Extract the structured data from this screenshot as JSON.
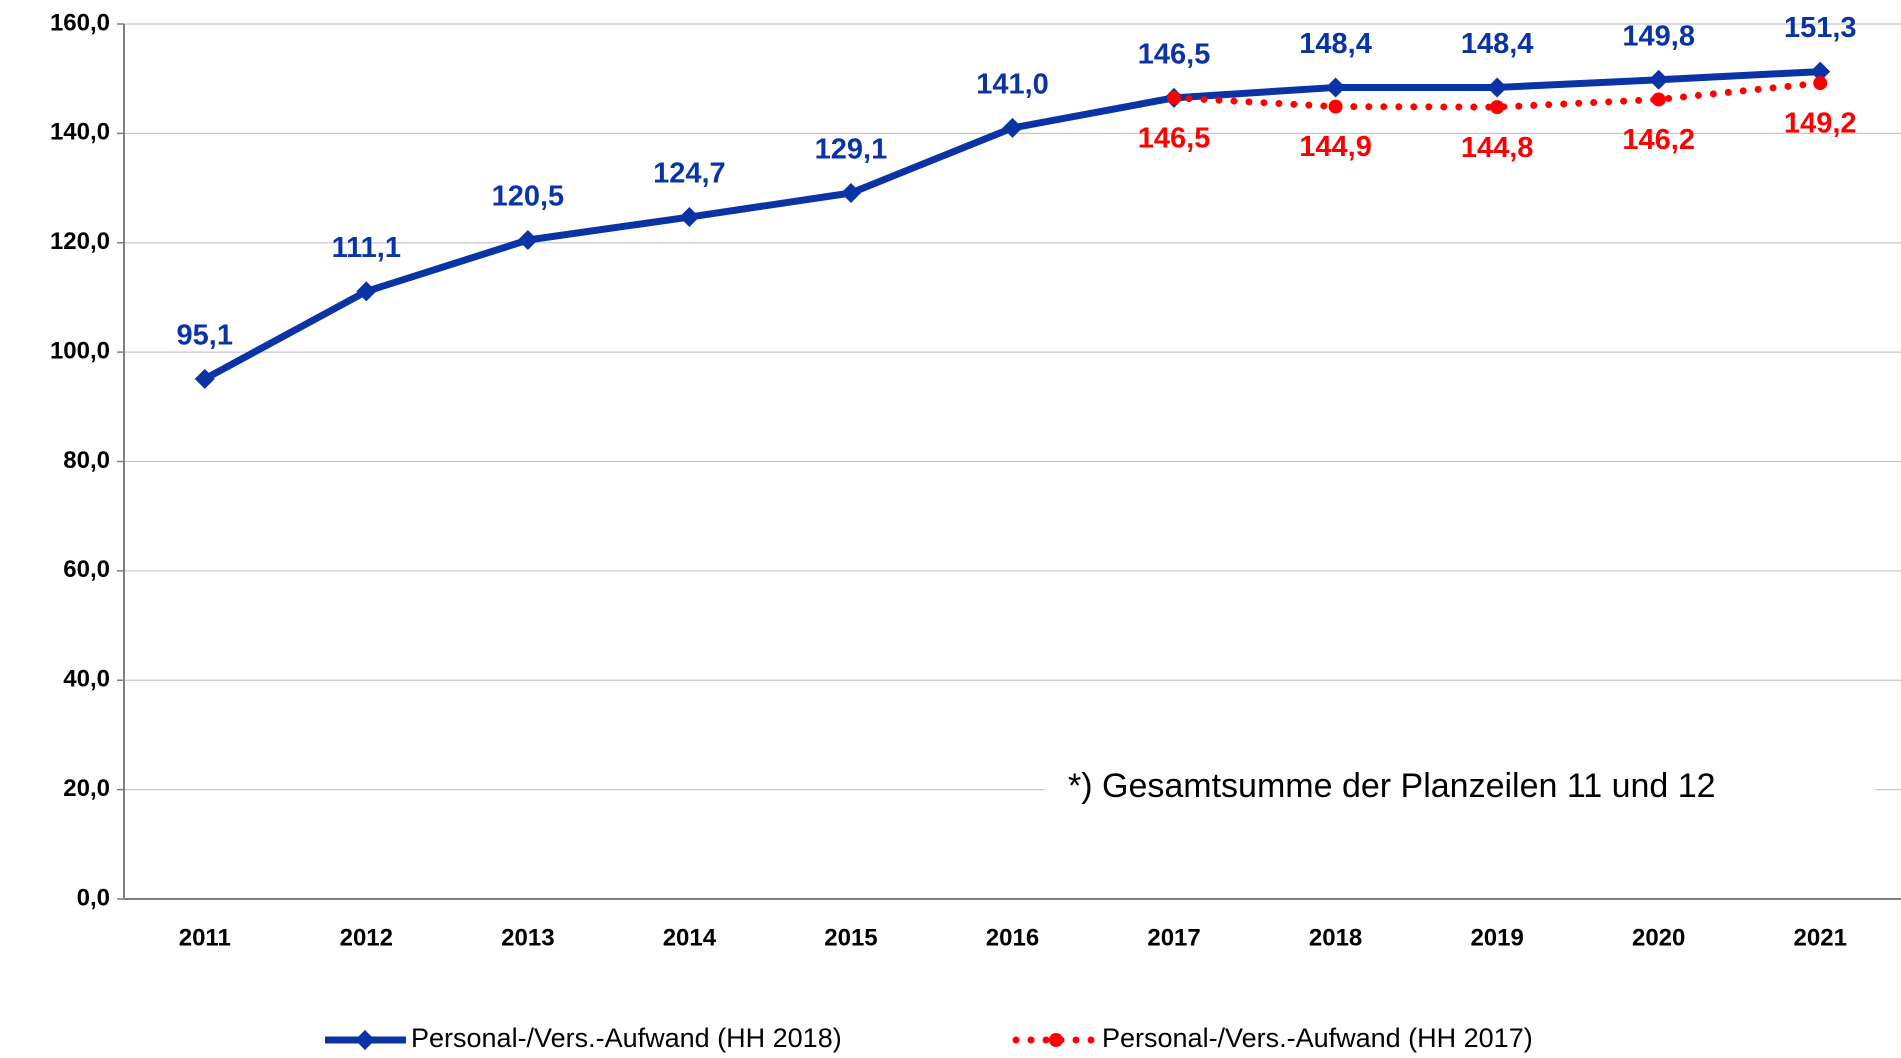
{
  "chart_data": {
    "type": "line",
    "categories": [
      "2011",
      "2012",
      "2013",
      "2014",
      "2015",
      "2016",
      "2017",
      "2018",
      "2019",
      "2020",
      "2021"
    ],
    "series": [
      {
        "name": "Personal-/Vers.-Aufwand (HH 2018)",
        "color": "#0a34a5",
        "line_style": "solid",
        "marker": "diamond",
        "label_position": "above",
        "values": [
          95.1,
          111.1,
          120.5,
          124.7,
          129.1,
          141.0,
          146.5,
          148.4,
          148.4,
          149.8,
          151.3
        ],
        "value_labels": [
          "95,1",
          "111,1",
          "120,5",
          "124,7",
          "129,1",
          "141,0",
          "146,5",
          "148,4",
          "148,4",
          "149,8",
          "151,3"
        ]
      },
      {
        "name": "Personal-/Vers.-Aufwand (HH 2017)",
        "color": "#ff0000",
        "line_style": "dotted",
        "marker": "circle",
        "label_position": "below",
        "values": [
          null,
          null,
          null,
          null,
          null,
          null,
          146.5,
          144.9,
          144.8,
          146.2,
          149.2
        ],
        "value_labels": [
          null,
          null,
          null,
          null,
          null,
          null,
          "146,5",
          "144,9",
          "144,8",
          "146,2",
          "149,2"
        ]
      }
    ],
    "ylim": [
      0,
      160
    ],
    "yticks": [
      {
        "value": 0,
        "label": "0,0"
      },
      {
        "value": 20,
        "label": "20,0"
      },
      {
        "value": 40,
        "label": "40,0"
      },
      {
        "value": 60,
        "label": "60,0"
      },
      {
        "value": 80,
        "label": "80,0"
      },
      {
        "value": 100,
        "label": "100,0"
      },
      {
        "value": 120,
        "label": "120,0"
      },
      {
        "value": 140,
        "label": "140,0"
      },
      {
        "value": 160,
        "label": "160,0"
      }
    ],
    "grid": true,
    "legend": "bottom",
    "annotation": "*) Gesamtsumme der Planzeilen 11 und 12"
  }
}
